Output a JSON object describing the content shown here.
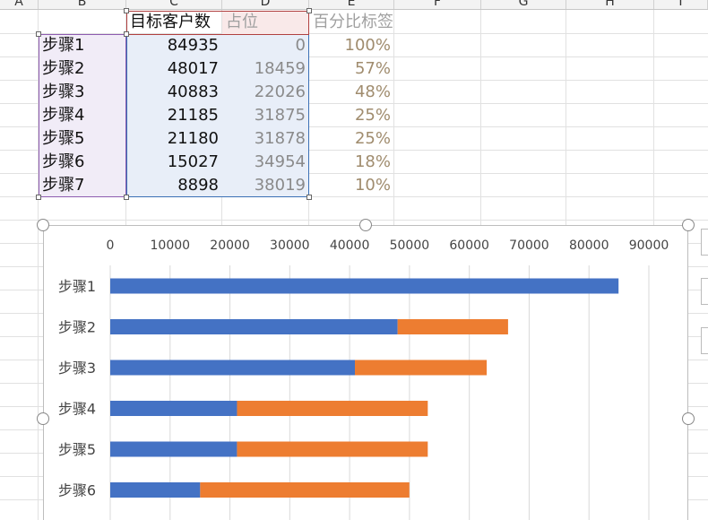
{
  "columns": [
    "A",
    "B",
    "C",
    "D",
    "E",
    "F",
    "G",
    "H",
    "I"
  ],
  "table": {
    "header_c": "目标客户数",
    "header_d": "占位",
    "header_e": "百分比标签",
    "rows": [
      {
        "step": "步骤1",
        "target": "84935",
        "placeholder": "0",
        "pct": "100%"
      },
      {
        "step": "步骤2",
        "target": "48017",
        "placeholder": "18459",
        "pct": "57%"
      },
      {
        "step": "步骤3",
        "target": "40883",
        "placeholder": "22026",
        "pct": "48%"
      },
      {
        "step": "步骤4",
        "target": "21185",
        "placeholder": "31875",
        "pct": "25%"
      },
      {
        "step": "步骤5",
        "target": "21180",
        "placeholder": "31878",
        "pct": "25%"
      },
      {
        "step": "步骤6",
        "target": "15027",
        "placeholder": "34954",
        "pct": "18%"
      },
      {
        "step": "步骤7",
        "target": "8898",
        "placeholder": "38019",
        "pct": "10%"
      }
    ]
  },
  "colors": {
    "series1": "#4472c4",
    "series2": "#ed7d31",
    "pct_text": "#a08c6e",
    "placeholder_text": "#8a8a8a"
  },
  "chart_data": {
    "type": "bar",
    "orientation": "horizontal",
    "stacked": true,
    "categories": [
      "步骤1",
      "步骤2",
      "步骤3",
      "步骤4",
      "步骤5",
      "步骤6"
    ],
    "series": [
      {
        "values": [
          84935,
          48017,
          40883,
          21185,
          21180,
          15027
        ]
      },
      {
        "values": [
          0,
          18459,
          22026,
          31875,
          31878,
          34954
        ]
      }
    ],
    "xlim": [
      0,
      90000
    ],
    "xticks": [
      "0",
      "10000",
      "20000",
      "30000",
      "40000",
      "50000",
      "60000",
      "70000",
      "80000",
      "90000"
    ],
    "axis_position": "top",
    "grid": true,
    "title": "",
    "xlabel": "",
    "ylabel": ""
  }
}
